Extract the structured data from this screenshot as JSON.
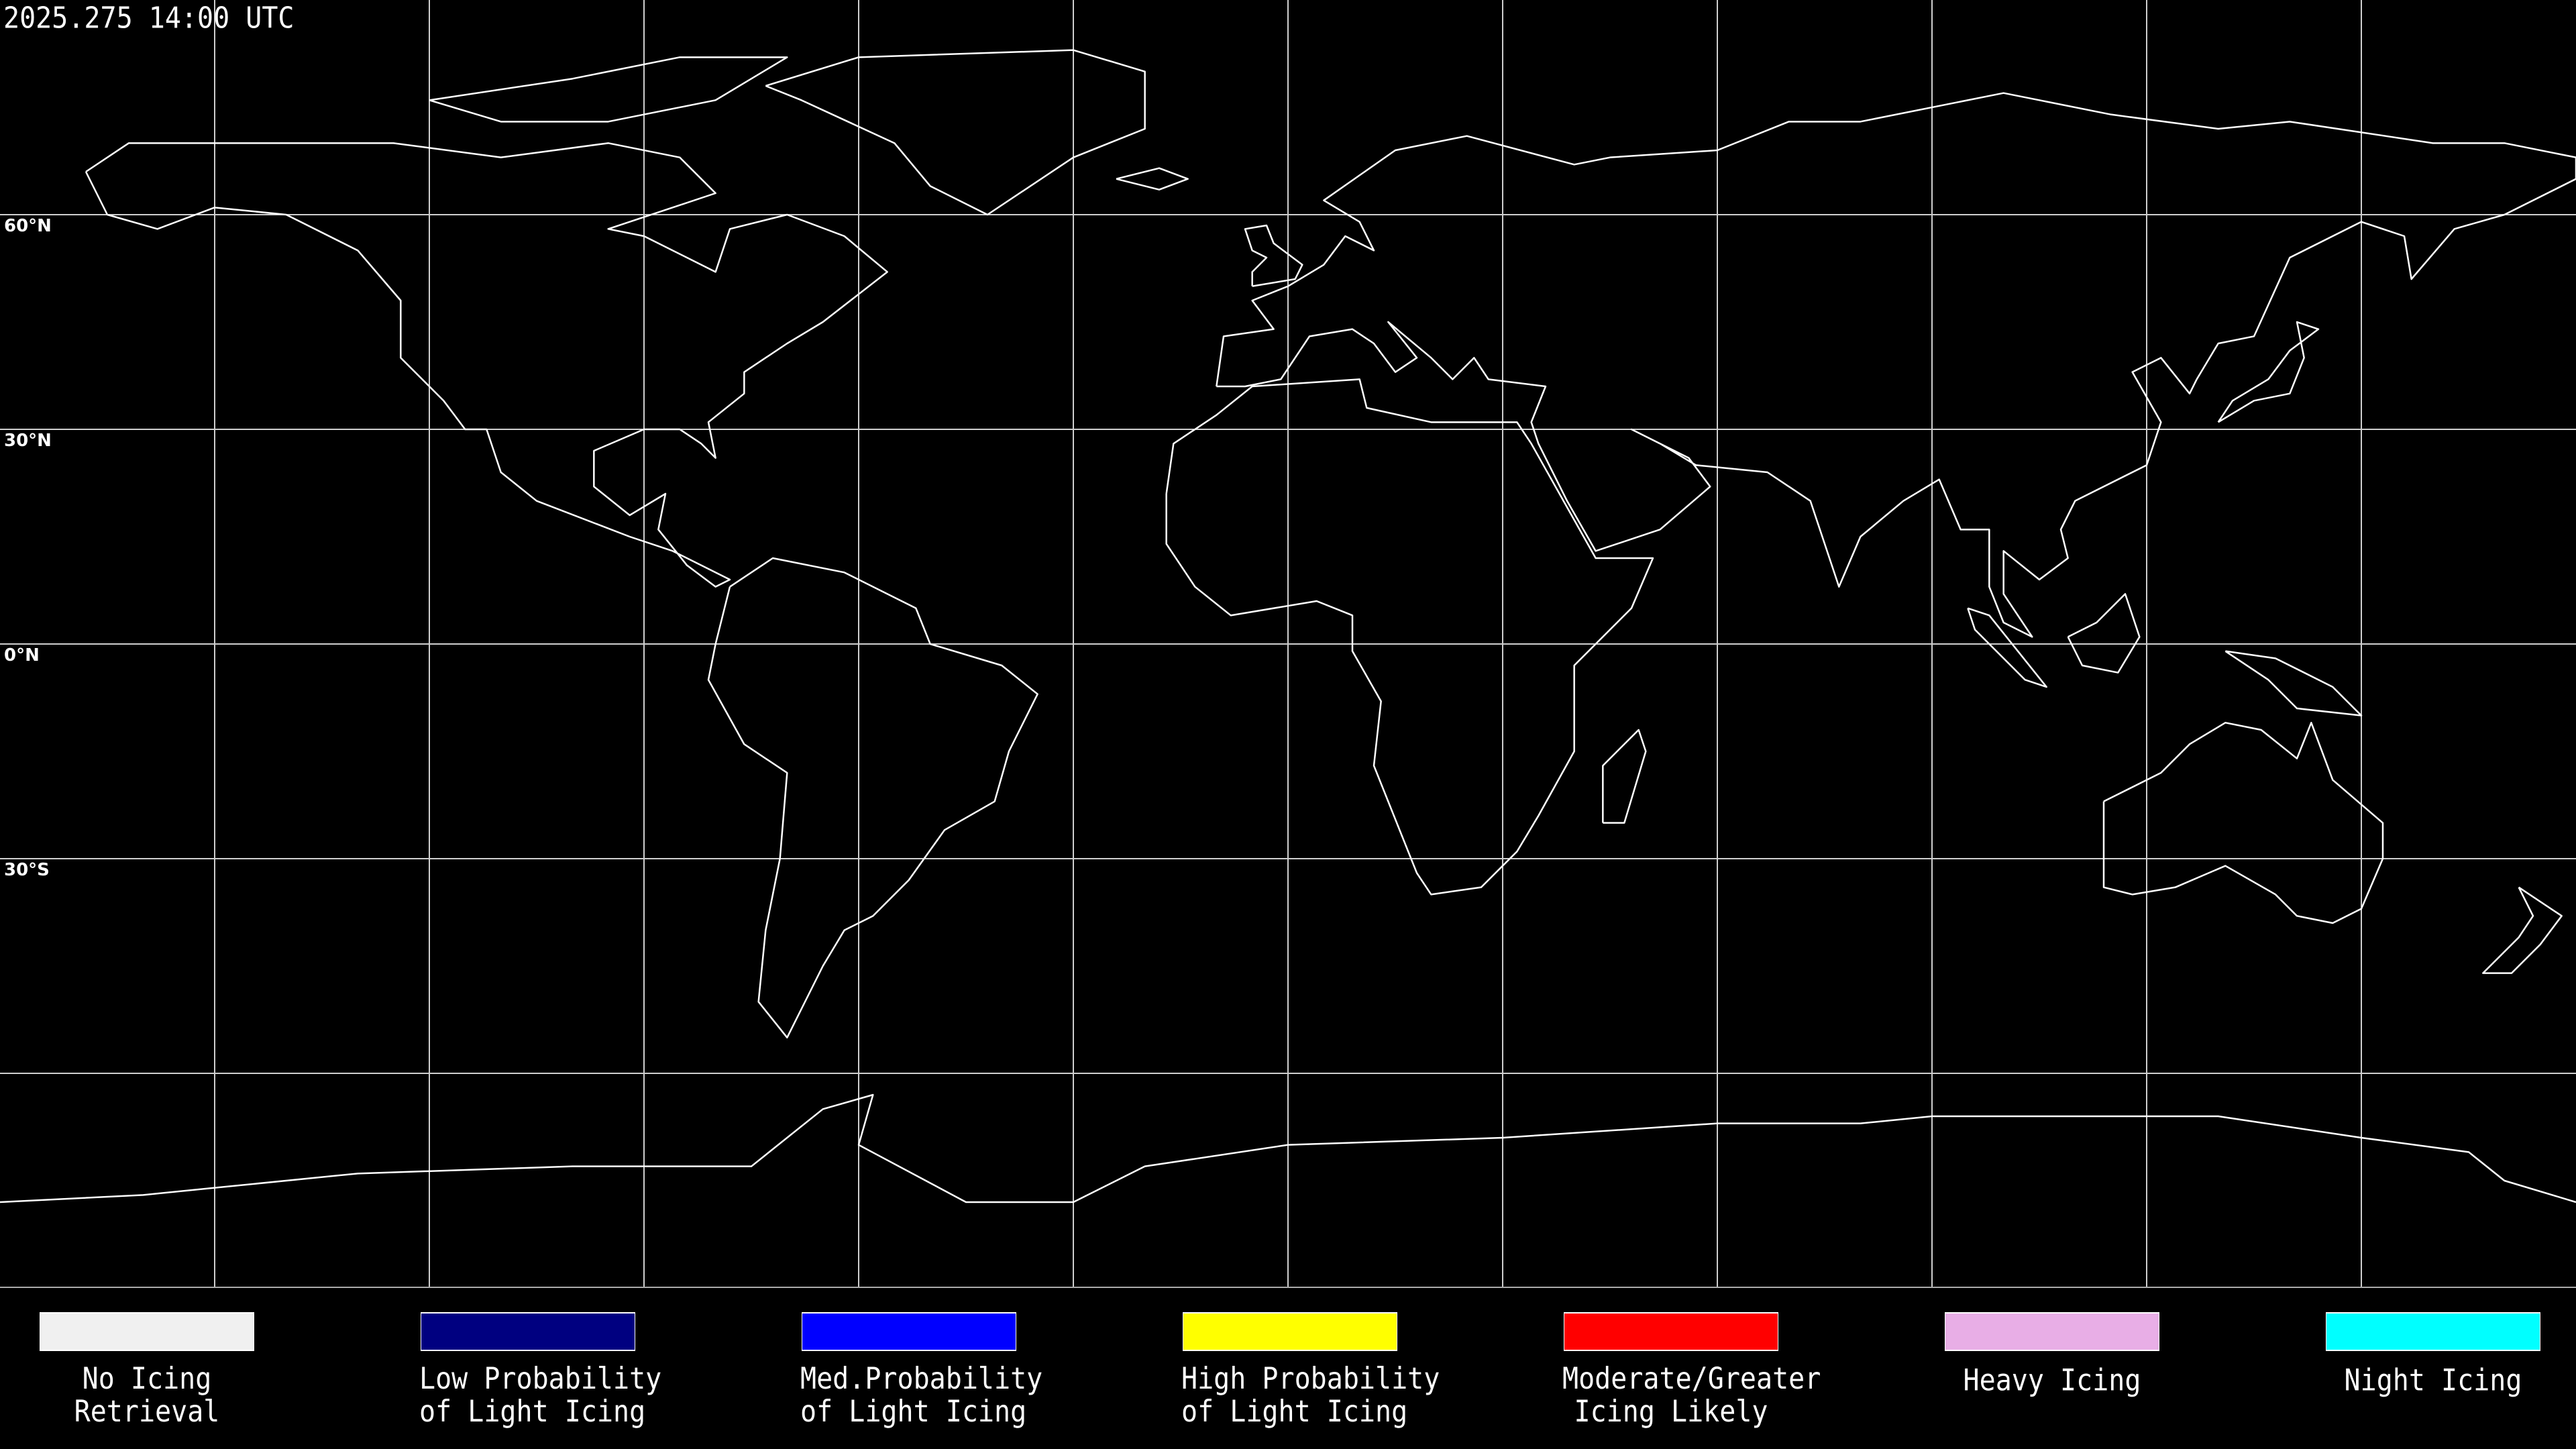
{
  "header": {
    "timestamp": "2025.275 14:00 UTC"
  },
  "map": {
    "projection": "equirectangular",
    "graticule_spacing_deg": 30,
    "lat_labels": [
      "60°N",
      "30°N",
      "0°N",
      "30°S"
    ]
  },
  "legend": {
    "items": [
      {
        "line1": "No Icing",
        "line2": "Retrieval",
        "color": "#f0f0f0"
      },
      {
        "line1": "Low Probability",
        "line2": "of Light Icing",
        "color": "#000080"
      },
      {
        "line1": "Med.Probability",
        "line2": "of Light Icing",
        "color": "#0000ff"
      },
      {
        "line1": "High Probability",
        "line2": "of Light Icing",
        "color": "#ffff00"
      },
      {
        "line1": "Moderate/Greater",
        "line2": "Icing Likely",
        "color": "#ff0000"
      },
      {
        "line1": "Heavy Icing",
        "line2": "",
        "color": "#e8aee6"
      },
      {
        "line1": "Night Icing",
        "line2": "",
        "color": "#00ffff"
      }
    ]
  }
}
